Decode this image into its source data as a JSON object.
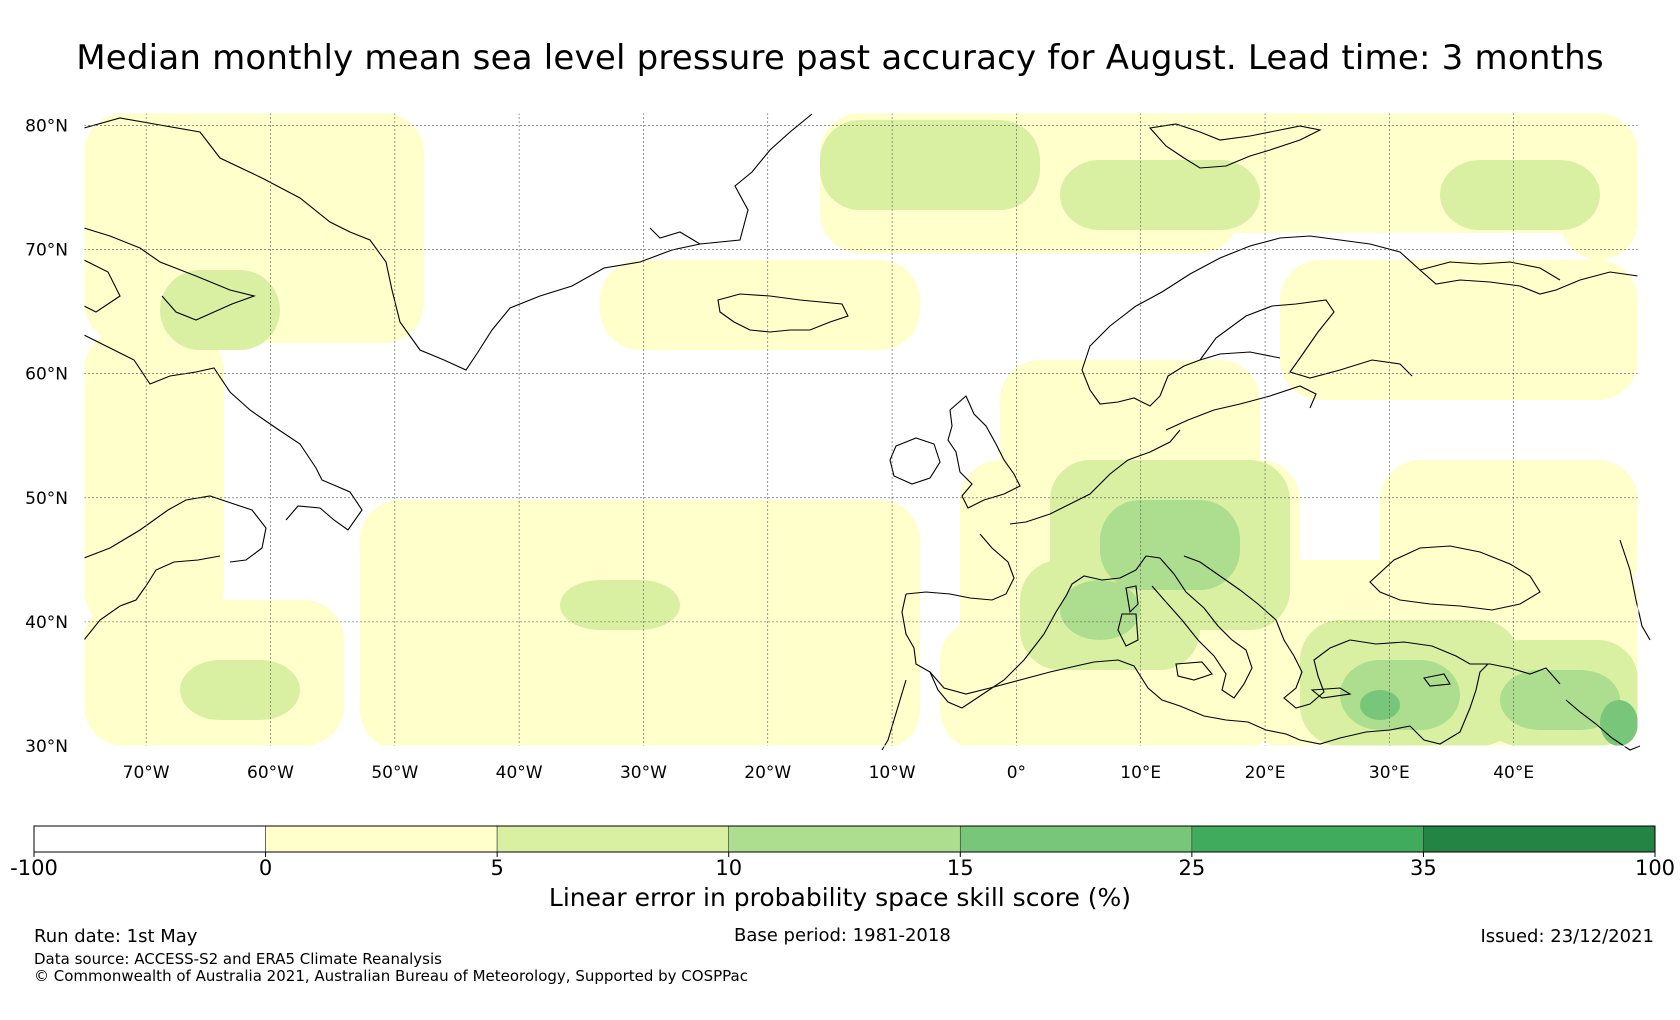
{
  "title": "Median monthly mean sea level pressure past accuracy for August. Lead time: 3 months",
  "map": {
    "lat_labels": [
      "80°N",
      "70°N",
      "60°N",
      "50°N",
      "40°N",
      "30°N"
    ],
    "lon_labels": [
      "70°W",
      "60°W",
      "50°W",
      "40°W",
      "30°W",
      "20°W",
      "10°W",
      "0°",
      "10°E",
      "20°E",
      "30°E",
      "40°E"
    ],
    "lat_values": [
      80,
      70,
      60,
      50,
      40,
      30
    ],
    "lon_values": [
      -70,
      -60,
      -50,
      -40,
      -30,
      -20,
      -10,
      0,
      10,
      20,
      30,
      40
    ],
    "extent": {
      "lon_min": -75,
      "lon_max": 50,
      "lat_min": 30,
      "lat_max": 81
    }
  },
  "colorbar": {
    "title": "Linear error in probability space skill score (%)",
    "bounds": [
      "-100",
      "0",
      "5",
      "10",
      "15",
      "25",
      "35",
      "100"
    ],
    "colors": [
      "#ffffff",
      "#ffffcc",
      "#d9f0a3",
      "#addd8e",
      "#78c679",
      "#41ab5d",
      "#238443"
    ]
  },
  "footer": {
    "run_date": "Run date: 1st May",
    "base_period": "Base period: 1981-2018",
    "issued": "Issued: 23/12/2021",
    "data_source": "Data source: ACCESS-S2 and ERA5 Climate Reanalysis",
    "copyright": "© Commonwealth of Australia 2021, Australian Bureau of Meteorology, Supported by COSPPac"
  }
}
